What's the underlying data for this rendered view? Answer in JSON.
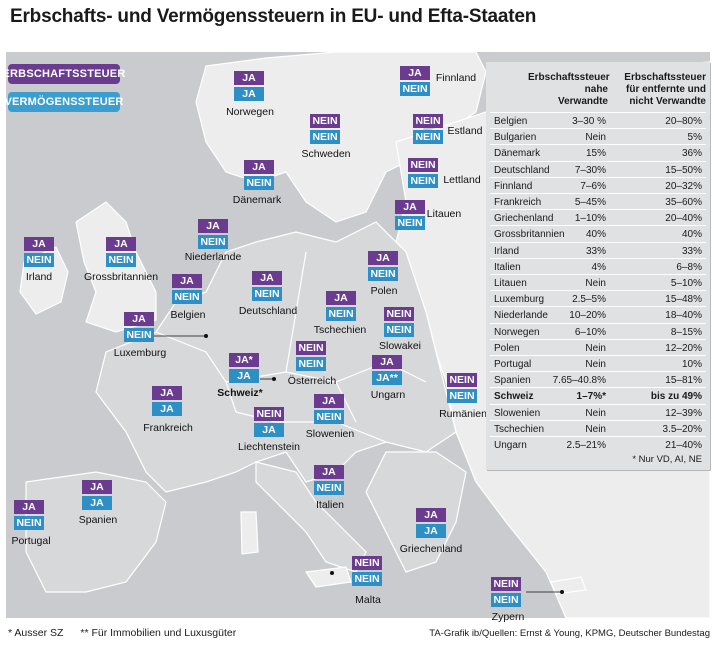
{
  "title": "Erbschafts- und Vermögenssteuern in EU- und Efta-Staaten",
  "legend": {
    "inheritance": "ERBSCHAFTSSTEUER",
    "wealth": "VERMÖGENSSTEUER"
  },
  "colors": {
    "inheritance": "#6a3b8f",
    "wealth": "#2e8fc4",
    "sea": "#c9cbcf",
    "land": "#ededee",
    "land_main": "#d7d8da"
  },
  "countries": [
    {
      "name": "Finnland",
      "inheritance": "JA",
      "wealth": "NEIN"
    },
    {
      "name": "Norwegen",
      "inheritance": "JA",
      "wealth": "JA"
    },
    {
      "name": "Schweden",
      "inheritance": "NEIN",
      "wealth": "NEIN"
    },
    {
      "name": "Estland",
      "inheritance": "NEIN",
      "wealth": "NEIN"
    },
    {
      "name": "Lettland",
      "inheritance": "NEIN",
      "wealth": "NEIN"
    },
    {
      "name": "Dänemark",
      "inheritance": "JA",
      "wealth": "NEIN"
    },
    {
      "name": "Litauen",
      "inheritance": "JA",
      "wealth": "NEIN"
    },
    {
      "name": "Irland",
      "inheritance": "JA",
      "wealth": "NEIN"
    },
    {
      "name": "Grossbritannien",
      "inheritance": "JA",
      "wealth": "NEIN"
    },
    {
      "name": "Niederlande",
      "inheritance": "JA",
      "wealth": "NEIN"
    },
    {
      "name": "Deutschland",
      "inheritance": "JA",
      "wealth": "NEIN"
    },
    {
      "name": "Polen",
      "inheritance": "JA",
      "wealth": "NEIN"
    },
    {
      "name": "Belgien",
      "inheritance": "JA",
      "wealth": "NEIN"
    },
    {
      "name": "Tschechien",
      "inheritance": "JA",
      "wealth": "NEIN"
    },
    {
      "name": "Luxemburg",
      "inheritance": "JA",
      "wealth": "NEIN"
    },
    {
      "name": "Slowakei",
      "inheritance": "NEIN",
      "wealth": "NEIN"
    },
    {
      "name": "Österreich",
      "inheritance": "NEIN",
      "wealth": "NEIN"
    },
    {
      "name": "Schweiz*",
      "inheritance": "JA*",
      "wealth": "JA"
    },
    {
      "name": "Ungarn",
      "inheritance": "JA",
      "wealth": "JA**"
    },
    {
      "name": "Rumänien",
      "inheritance": "NEIN",
      "wealth": "NEIN"
    },
    {
      "name": "Frankreich",
      "inheritance": "JA",
      "wealth": "JA"
    },
    {
      "name": "Liechtenstein",
      "inheritance": "NEIN",
      "wealth": "JA"
    },
    {
      "name": "Slowenien",
      "inheritance": "JA",
      "wealth": "NEIN"
    },
    {
      "name": "Italien",
      "inheritance": "JA",
      "wealth": "NEIN"
    },
    {
      "name": "Spanien",
      "inheritance": "JA",
      "wealth": "JA"
    },
    {
      "name": "Portugal",
      "inheritance": "JA",
      "wealth": "NEIN"
    },
    {
      "name": "Griechenland",
      "inheritance": "JA",
      "wealth": "JA"
    },
    {
      "name": "Malta",
      "inheritance": "NEIN",
      "wealth": "NEIN"
    },
    {
      "name": "Zypern",
      "inheritance": "NEIN",
      "wealth": "NEIN"
    }
  ],
  "table": {
    "header_col1": [
      "Erbschaftssteuer",
      "nahe",
      "Verwandte"
    ],
    "header_col2": [
      "Erbschaftssteuer",
      "für entfernte und",
      "nicht Verwandte"
    ],
    "rows": [
      {
        "country": "Belgien",
        "near": "3–30 %",
        "distant": "20–80%"
      },
      {
        "country": "Bulgarien",
        "near": "Nein",
        "distant": "5%"
      },
      {
        "country": "Dänemark",
        "near": "15%",
        "distant": "36%"
      },
      {
        "country": "Deutschland",
        "near": "7–30%",
        "distant": "15–50%"
      },
      {
        "country": "Finnland",
        "near": "7–6%",
        "distant": "20–32%"
      },
      {
        "country": "Frankreich",
        "near": "5–45%",
        "distant": "35–60%"
      },
      {
        "country": "Griechenland",
        "near": "1–10%",
        "distant": "20–40%"
      },
      {
        "country": "Grossbritannien",
        "near": "40%",
        "distant": "40%"
      },
      {
        "country": "Irland",
        "near": "33%",
        "distant": "33%"
      },
      {
        "country": "Italien",
        "near": "4%",
        "distant": "6–8%"
      },
      {
        "country": "Litauen",
        "near": "Nein",
        "distant": "5–10%"
      },
      {
        "country": "Luxemburg",
        "near": "2.5–5%",
        "distant": "15–48%"
      },
      {
        "country": "Niederlande",
        "near": "10–20%",
        "distant": "18–40%"
      },
      {
        "country": "Norwegen",
        "near": "6–10%",
        "distant": "8–15%"
      },
      {
        "country": "Polen",
        "near": "Nein",
        "distant": "12–20%"
      },
      {
        "country": "Portugal",
        "near": "Nein",
        "distant": "10%"
      },
      {
        "country": "Spanien",
        "near": "7.65–40.8%",
        "distant": "15–81%"
      },
      {
        "country": "Schweiz",
        "near": "1–7%*",
        "distant": "bis zu 49%",
        "bold": true
      },
      {
        "country": "Slowenien",
        "near": "Nein",
        "distant": "12–39%"
      },
      {
        "country": "Tschechien",
        "near": "Nein",
        "distant": "3.5–20%"
      },
      {
        "country": "Ungarn",
        "near": "2.5–21%",
        "distant": "21–40%"
      }
    ],
    "note": "* Nur VD, AI, NE"
  },
  "footnotes": [
    "* Ausser SZ",
    "** Für Immobilien und Luxusgüter"
  ],
  "source": "TA-Grafik ib/Quellen: Ernst & Young, KPMG, Deutscher Bundestag"
}
